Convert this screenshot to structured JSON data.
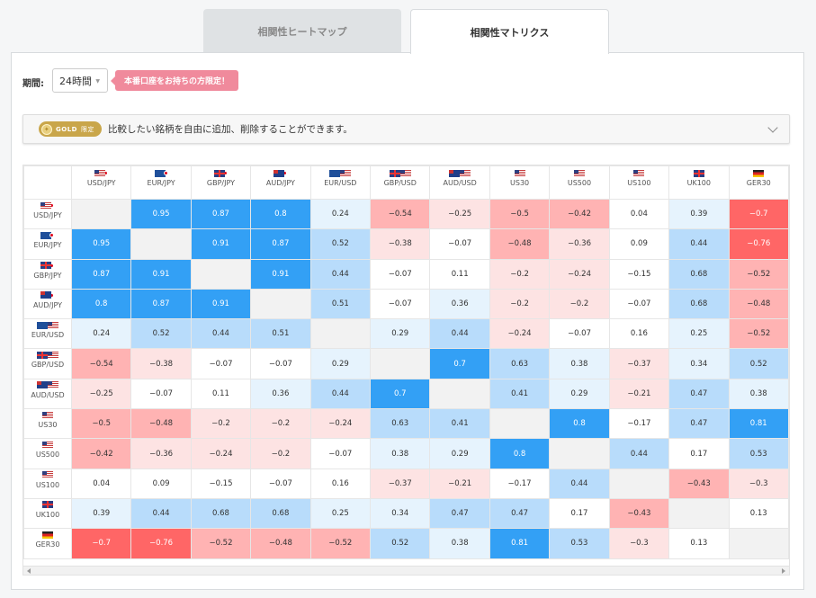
{
  "tabs": [
    {
      "label": "相関性ヒートマップ",
      "active": false
    },
    {
      "label": "相関性マトリクス",
      "active": true
    }
  ],
  "period": {
    "label": "期間:",
    "value": "24時間",
    "badge": "本番口座をお持ちの方限定！"
  },
  "accordion": {
    "gold_label": "GOLD",
    "gold_limit": "限定",
    "text": "比較したい銘柄を自由に追加、削除することができます。",
    "icon": "chevron-down-icon"
  },
  "colors": {
    "strong_pos": "#33a0f5",
    "mid_pos": "#b8dcfb",
    "weak_pos": "#e6f3fd",
    "weak_neg": "#fde3e3",
    "mid_neg": "#ffb3b3",
    "strong_neg": "#ff6666",
    "diag": "#f2f2f2"
  },
  "symbols": [
    {
      "label": "USD/JPY",
      "flags": [
        "us",
        "jp"
      ]
    },
    {
      "label": "EUR/JPY",
      "flags": [
        "eu",
        "jp"
      ]
    },
    {
      "label": "GBP/JPY",
      "flags": [
        "gb",
        "jp"
      ]
    },
    {
      "label": "AUD/JPY",
      "flags": [
        "au",
        "jp"
      ]
    },
    {
      "label": "EUR/USD",
      "flags": [
        "eu",
        "us"
      ]
    },
    {
      "label": "GBP/USD",
      "flags": [
        "gb",
        "us"
      ]
    },
    {
      "label": "AUD/USD",
      "flags": [
        "au",
        "us"
      ]
    },
    {
      "label": "US30",
      "flags": [
        "us"
      ]
    },
    {
      "label": "US500",
      "flags": [
        "us"
      ]
    },
    {
      "label": "US100",
      "flags": [
        "us"
      ]
    },
    {
      "label": "UK100",
      "flags": [
        "gb"
      ]
    },
    {
      "label": "GER30",
      "flags": [
        "de"
      ]
    }
  ],
  "matrix": [
    [
      null,
      "0.95",
      "0.87",
      "0.8",
      "0.24",
      "-0.54",
      "-0.25",
      "-0.5",
      "-0.42",
      "0.04",
      "0.39",
      "-0.7"
    ],
    [
      "0.95",
      null,
      "0.91",
      "0.87",
      "0.52",
      "-0.38",
      "-0.07",
      "-0.48",
      "-0.36",
      "0.09",
      "0.44",
      "-0.76"
    ],
    [
      "0.87",
      "0.91",
      null,
      "0.91",
      "0.44",
      "-0.07",
      "0.11",
      "-0.2",
      "-0.24",
      "-0.15",
      "0.68",
      "-0.52"
    ],
    [
      "0.8",
      "0.87",
      "0.91",
      null,
      "0.51",
      "-0.07",
      "0.36",
      "-0.2",
      "-0.2",
      "-0.07",
      "0.68",
      "-0.48"
    ],
    [
      "0.24",
      "0.52",
      "0.44",
      "0.51",
      null,
      "0.29",
      "0.44",
      "-0.24",
      "-0.07",
      "0.16",
      "0.25",
      "-0.52"
    ],
    [
      "-0.54",
      "-0.38",
      "-0.07",
      "-0.07",
      "0.29",
      null,
      "0.7",
      "0.63",
      "0.38",
      "-0.37",
      "0.34",
      "0.52"
    ],
    [
      "-0.25",
      "-0.07",
      "0.11",
      "0.36",
      "0.44",
      "0.7",
      null,
      "0.41",
      "0.29",
      "-0.21",
      "0.47",
      "0.38"
    ],
    [
      "-0.5",
      "-0.48",
      "-0.2",
      "-0.2",
      "-0.24",
      "0.63",
      "0.41",
      null,
      "0.8",
      "-0.17",
      "0.47",
      "0.81"
    ],
    [
      "-0.42",
      "-0.36",
      "-0.24",
      "-0.2",
      "-0.07",
      "0.38",
      "0.29",
      "0.8",
      null,
      "0.44",
      "0.17",
      "0.53"
    ],
    [
      "0.04",
      "0.09",
      "-0.15",
      "-0.07",
      "0.16",
      "-0.37",
      "-0.21",
      "-0.17",
      "0.44",
      null,
      "-0.43",
      "-0.3"
    ],
    [
      "0.39",
      "0.44",
      "0.68",
      "0.68",
      "0.25",
      "0.34",
      "0.47",
      "0.47",
      "0.17",
      "-0.43",
      null,
      "0.13"
    ],
    [
      "-0.7",
      "-0.76",
      "-0.52",
      "-0.48",
      "-0.52",
      "0.52",
      "0.38",
      "0.81",
      "0.53",
      "-0.3",
      "0.13",
      null
    ]
  ]
}
